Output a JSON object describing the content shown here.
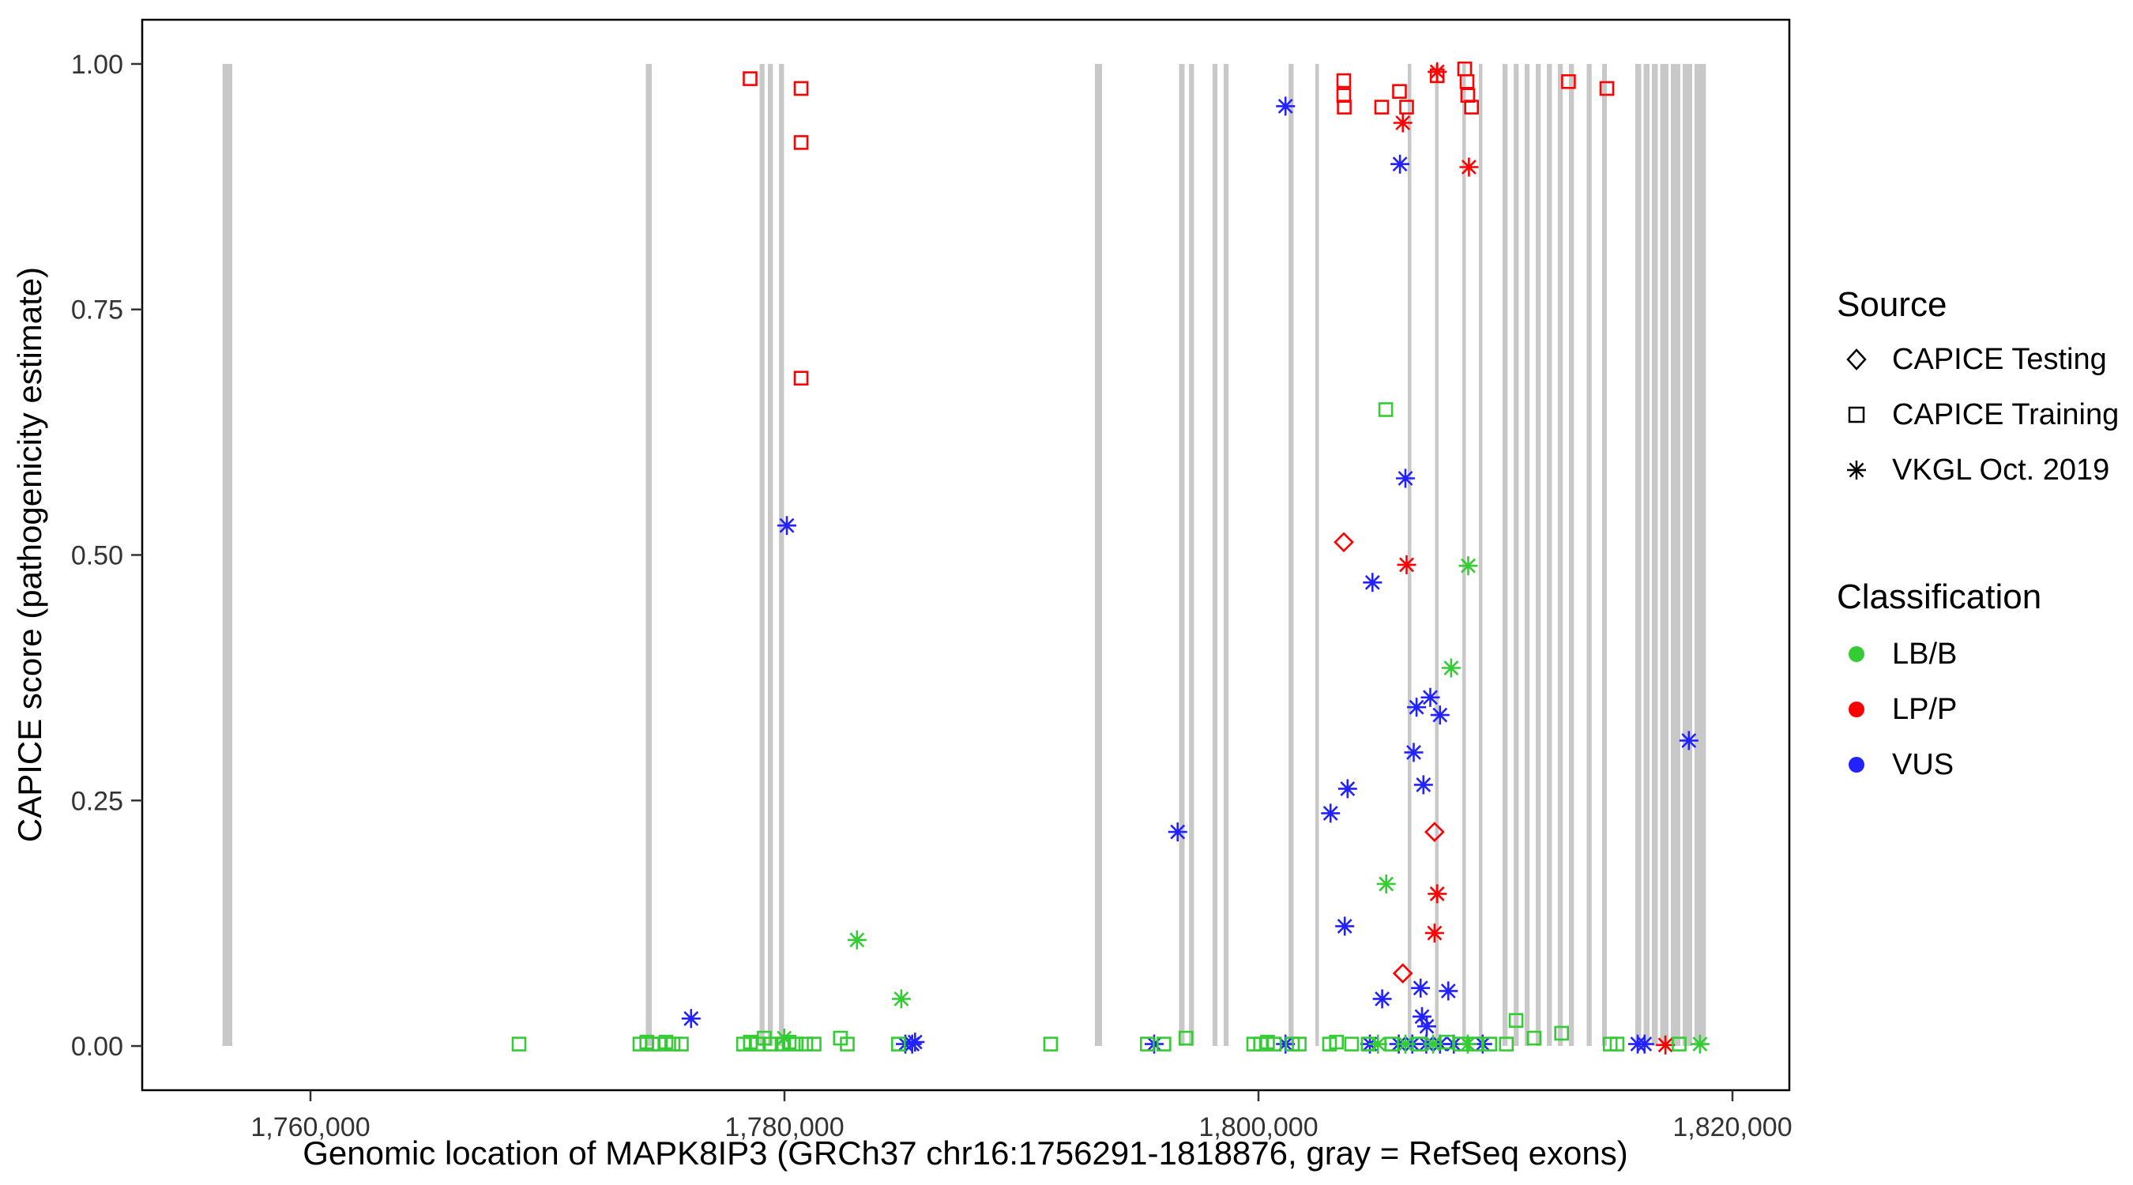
{
  "legend": {
    "source": {
      "title": "Source",
      "items": [
        {
          "label": "CAPICE Testing",
          "symbol": "diamond"
        },
        {
          "label": "CAPICE Training",
          "symbol": "square"
        },
        {
          "label": "VKGL Oct. 2019",
          "symbol": "asterisk"
        }
      ]
    },
    "classification": {
      "title": "Classification",
      "items": [
        {
          "label": "LB/B",
          "color": "#33cc33"
        },
        {
          "label": "LP/P",
          "color": "#ff0000"
        },
        {
          "label": "VUS",
          "color": "#2222ff"
        }
      ]
    }
  },
  "chart_data": {
    "type": "scatter",
    "title": "",
    "xlabel": "Genomic location of MAPK8IP3 (GRCh37 chr16:1756291-1818876, gray = RefSeq exons)",
    "ylabel": "CAPICE score (pathogenicity estimate)",
    "xlim": [
      1752900,
      1822400
    ],
    "ylim": [
      -0.045,
      1.045
    ],
    "x_ticks": [
      {
        "value": 1760000,
        "label": "1,760,000"
      },
      {
        "value": 1780000,
        "label": "1,780,000"
      },
      {
        "value": 1800000,
        "label": "1,800,000"
      },
      {
        "value": 1820000,
        "label": "1,820,000"
      }
    ],
    "y_ticks": [
      {
        "value": 0.0,
        "label": "0.00"
      },
      {
        "value": 0.25,
        "label": "0.25"
      },
      {
        "value": 0.5,
        "label": "0.50"
      },
      {
        "value": 0.75,
        "label": "0.75"
      },
      {
        "value": 1.0,
        "label": "1.00"
      }
    ],
    "exon_color": "#c8c8c8",
    "class_colors": {
      "LB/B": "#33cc33",
      "LP/P": "#ff0000",
      "VUS": "#2222ff"
    },
    "source_shapes": {
      "testing": "diamond",
      "training": "square",
      "vkgl": "asterisk"
    },
    "exons": [
      [
        1756291,
        1756700
      ],
      [
        1774150,
        1774400
      ],
      [
        1778950,
        1779160
      ],
      [
        1779300,
        1779510
      ],
      [
        1779770,
        1779980
      ],
      [
        1793100,
        1793400
      ],
      [
        1796650,
        1796880
      ],
      [
        1797070,
        1797280
      ],
      [
        1798060,
        1798270
      ],
      [
        1798530,
        1798740
      ],
      [
        1801270,
        1801480
      ],
      [
        1802400,
        1802550
      ],
      [
        1806300,
        1806450
      ],
      [
        1807450,
        1807600
      ],
      [
        1808600,
        1808750
      ],
      [
        1809300,
        1809450
      ],
      [
        1810300,
        1810510
      ],
      [
        1810770,
        1810980
      ],
      [
        1811230,
        1811440
      ],
      [
        1811700,
        1811910
      ],
      [
        1812170,
        1812380
      ],
      [
        1812630,
        1812840
      ],
      [
        1813100,
        1813310
      ],
      [
        1813850,
        1814060
      ],
      [
        1814500,
        1814700
      ],
      [
        1815900,
        1816150
      ],
      [
        1816250,
        1816500
      ],
      [
        1816600,
        1816850
      ],
      [
        1816950,
        1817300
      ],
      [
        1817400,
        1817800
      ],
      [
        1817900,
        1818300
      ],
      [
        1818400,
        1818876
      ]
    ],
    "points": [
      {
        "x": 1778550,
        "y": 0.985,
        "s": "training",
        "c": "LP/P"
      },
      {
        "x": 1780700,
        "y": 0.975,
        "s": "training",
        "c": "LP/P"
      },
      {
        "x": 1780700,
        "y": 0.92,
        "s": "training",
        "c": "LP/P"
      },
      {
        "x": 1780700,
        "y": 0.68,
        "s": "training",
        "c": "LP/P"
      },
      {
        "x": 1803600,
        "y": 0.983,
        "s": "training",
        "c": "LP/P"
      },
      {
        "x": 1803600,
        "y": 0.968,
        "s": "training",
        "c": "LP/P"
      },
      {
        "x": 1803620,
        "y": 0.956,
        "s": "training",
        "c": "LP/P"
      },
      {
        "x": 1805200,
        "y": 0.956,
        "s": "training",
        "c": "LP/P"
      },
      {
        "x": 1805950,
        "y": 0.972,
        "s": "training",
        "c": "LP/P"
      },
      {
        "x": 1806250,
        "y": 0.956,
        "s": "training",
        "c": "LP/P"
      },
      {
        "x": 1807540,
        "y": 0.988,
        "s": "training",
        "c": "LP/P"
      },
      {
        "x": 1808700,
        "y": 0.995,
        "s": "training",
        "c": "LP/P"
      },
      {
        "x": 1808800,
        "y": 0.982,
        "s": "training",
        "c": "LP/P"
      },
      {
        "x": 1808830,
        "y": 0.968,
        "s": "training",
        "c": "LP/P"
      },
      {
        "x": 1808990,
        "y": 0.956,
        "s": "training",
        "c": "LP/P"
      },
      {
        "x": 1813080,
        "y": 0.982,
        "s": "training",
        "c": "LP/P"
      },
      {
        "x": 1814700,
        "y": 0.975,
        "s": "training",
        "c": "LP/P"
      },
      {
        "x": 1806090,
        "y": 0.94,
        "s": "vkgl",
        "c": "LP/P"
      },
      {
        "x": 1807540,
        "y": 0.992,
        "s": "vkgl",
        "c": "LP/P"
      },
      {
        "x": 1808880,
        "y": 0.895,
        "s": "vkgl",
        "c": "LP/P"
      },
      {
        "x": 1806250,
        "y": 0.49,
        "s": "vkgl",
        "c": "LP/P"
      },
      {
        "x": 1807540,
        "y": 0.155,
        "s": "vkgl",
        "c": "LP/P"
      },
      {
        "x": 1807430,
        "y": 0.115,
        "s": "vkgl",
        "c": "LP/P"
      },
      {
        "x": 1817170,
        "y": 0.001,
        "s": "vkgl",
        "c": "LP/P"
      },
      {
        "x": 1803600,
        "y": 0.513,
        "s": "testing",
        "c": "LP/P"
      },
      {
        "x": 1807430,
        "y": 0.218,
        "s": "testing",
        "c": "LP/P"
      },
      {
        "x": 1806090,
        "y": 0.074,
        "s": "testing",
        "c": "LP/P"
      },
      {
        "x": 1801140,
        "y": 0.957,
        "s": "vkgl",
        "c": "VUS"
      },
      {
        "x": 1805970,
        "y": 0.898,
        "s": "vkgl",
        "c": "VUS"
      },
      {
        "x": 1806200,
        "y": 0.578,
        "s": "vkgl",
        "c": "VUS"
      },
      {
        "x": 1780100,
        "y": 0.53,
        "s": "vkgl",
        "c": "VUS"
      },
      {
        "x": 1804810,
        "y": 0.472,
        "s": "vkgl",
        "c": "VUS"
      },
      {
        "x": 1807250,
        "y": 0.355,
        "s": "vkgl",
        "c": "VUS"
      },
      {
        "x": 1806670,
        "y": 0.345,
        "s": "vkgl",
        "c": "VUS"
      },
      {
        "x": 1807660,
        "y": 0.337,
        "s": "vkgl",
        "c": "VUS"
      },
      {
        "x": 1806550,
        "y": 0.299,
        "s": "vkgl",
        "c": "VUS"
      },
      {
        "x": 1806960,
        "y": 0.266,
        "s": "vkgl",
        "c": "VUS"
      },
      {
        "x": 1803760,
        "y": 0.262,
        "s": "vkgl",
        "c": "VUS"
      },
      {
        "x": 1803040,
        "y": 0.237,
        "s": "vkgl",
        "c": "VUS"
      },
      {
        "x": 1796590,
        "y": 0.218,
        "s": "vkgl",
        "c": "VUS"
      },
      {
        "x": 1818160,
        "y": 0.311,
        "s": "vkgl",
        "c": "VUS"
      },
      {
        "x": 1803640,
        "y": 0.122,
        "s": "vkgl",
        "c": "VUS"
      },
      {
        "x": 1806840,
        "y": 0.059,
        "s": "vkgl",
        "c": "VUS"
      },
      {
        "x": 1808010,
        "y": 0.056,
        "s": "vkgl",
        "c": "VUS"
      },
      {
        "x": 1805220,
        "y": 0.048,
        "s": "vkgl",
        "c": "VUS"
      },
      {
        "x": 1776060,
        "y": 0.028,
        "s": "vkgl",
        "c": "VUS"
      },
      {
        "x": 1806900,
        "y": 0.03,
        "s": "vkgl",
        "c": "VUS"
      },
      {
        "x": 1807100,
        "y": 0.02,
        "s": "vkgl",
        "c": "VUS"
      },
      {
        "x": 1785100,
        "y": 0.002,
        "s": "vkgl",
        "c": "VUS"
      },
      {
        "x": 1785390,
        "y": 0.002,
        "s": "vkgl",
        "c": "VUS"
      },
      {
        "x": 1785510,
        "y": 0.004,
        "s": "vkgl",
        "c": "VUS"
      },
      {
        "x": 1795600,
        "y": 0.002,
        "s": "vkgl",
        "c": "VUS"
      },
      {
        "x": 1801140,
        "y": 0.002,
        "s": "vkgl",
        "c": "VUS"
      },
      {
        "x": 1804700,
        "y": 0.002,
        "s": "vkgl",
        "c": "VUS"
      },
      {
        "x": 1805920,
        "y": 0.002,
        "s": "vkgl",
        "c": "VUS"
      },
      {
        "x": 1806490,
        "y": 0.002,
        "s": "vkgl",
        "c": "VUS"
      },
      {
        "x": 1807080,
        "y": 0.002,
        "s": "vkgl",
        "c": "VUS"
      },
      {
        "x": 1807660,
        "y": 0.002,
        "s": "vkgl",
        "c": "VUS"
      },
      {
        "x": 1808240,
        "y": 0.002,
        "s": "vkgl",
        "c": "VUS"
      },
      {
        "x": 1809460,
        "y": 0.002,
        "s": "vkgl",
        "c": "VUS"
      },
      {
        "x": 1816000,
        "y": 0.002,
        "s": "vkgl",
        "c": "VUS"
      },
      {
        "x": 1816290,
        "y": 0.002,
        "s": "vkgl",
        "c": "VUS"
      },
      {
        "x": 1768800,
        "y": 0.002,
        "s": "training",
        "c": "LB/B"
      },
      {
        "x": 1773900,
        "y": 0.002,
        "s": "training",
        "c": "LB/B"
      },
      {
        "x": 1774190,
        "y": 0.004,
        "s": "training",
        "c": "LB/B"
      },
      {
        "x": 1774420,
        "y": 0.002,
        "s": "training",
        "c": "LB/B"
      },
      {
        "x": 1774710,
        "y": 0.002,
        "s": "training",
        "c": "LB/B"
      },
      {
        "x": 1775000,
        "y": 0.004,
        "s": "training",
        "c": "LB/B"
      },
      {
        "x": 1775300,
        "y": 0.002,
        "s": "training",
        "c": "LB/B"
      },
      {
        "x": 1775650,
        "y": 0.002,
        "s": "training",
        "c": "LB/B"
      },
      {
        "x": 1778270,
        "y": 0.002,
        "s": "training",
        "c": "LB/B"
      },
      {
        "x": 1778560,
        "y": 0.004,
        "s": "training",
        "c": "LB/B"
      },
      {
        "x": 1778850,
        "y": 0.002,
        "s": "training",
        "c": "LB/B"
      },
      {
        "x": 1779150,
        "y": 0.008,
        "s": "training",
        "c": "LB/B"
      },
      {
        "x": 1779440,
        "y": 0.002,
        "s": "training",
        "c": "LB/B"
      },
      {
        "x": 1779900,
        "y": 0.002,
        "s": "training",
        "c": "LB/B"
      },
      {
        "x": 1780200,
        "y": 0.004,
        "s": "training",
        "c": "LB/B"
      },
      {
        "x": 1780490,
        "y": 0.002,
        "s": "training",
        "c": "LB/B"
      },
      {
        "x": 1780900,
        "y": 0.002,
        "s": "training",
        "c": "LB/B"
      },
      {
        "x": 1781250,
        "y": 0.002,
        "s": "training",
        "c": "LB/B"
      },
      {
        "x": 1782360,
        "y": 0.008,
        "s": "training",
        "c": "LB/B"
      },
      {
        "x": 1782650,
        "y": 0.002,
        "s": "training",
        "c": "LB/B"
      },
      {
        "x": 1784810,
        "y": 0.002,
        "s": "training",
        "c": "LB/B"
      },
      {
        "x": 1791230,
        "y": 0.002,
        "s": "training",
        "c": "LB/B"
      },
      {
        "x": 1795310,
        "y": 0.002,
        "s": "training",
        "c": "LB/B"
      },
      {
        "x": 1796010,
        "y": 0.002,
        "s": "training",
        "c": "LB/B"
      },
      {
        "x": 1796940,
        "y": 0.008,
        "s": "training",
        "c": "LB/B"
      },
      {
        "x": 1799800,
        "y": 0.002,
        "s": "training",
        "c": "LB/B"
      },
      {
        "x": 1800090,
        "y": 0.002,
        "s": "training",
        "c": "LB/B"
      },
      {
        "x": 1800380,
        "y": 0.004,
        "s": "training",
        "c": "LB/B"
      },
      {
        "x": 1800670,
        "y": 0.002,
        "s": "training",
        "c": "LB/B"
      },
      {
        "x": 1801430,
        "y": 0.002,
        "s": "training",
        "c": "LB/B"
      },
      {
        "x": 1801720,
        "y": 0.002,
        "s": "training",
        "c": "LB/B"
      },
      {
        "x": 1803000,
        "y": 0.002,
        "s": "training",
        "c": "LB/B"
      },
      {
        "x": 1803290,
        "y": 0.004,
        "s": "training",
        "c": "LB/B"
      },
      {
        "x": 1803930,
        "y": 0.002,
        "s": "training",
        "c": "LB/B"
      },
      {
        "x": 1804630,
        "y": 0.002,
        "s": "training",
        "c": "LB/B"
      },
      {
        "x": 1805620,
        "y": 0.002,
        "s": "training",
        "c": "LB/B"
      },
      {
        "x": 1806780,
        "y": 0.002,
        "s": "training",
        "c": "LB/B"
      },
      {
        "x": 1807950,
        "y": 0.004,
        "s": "training",
        "c": "LB/B"
      },
      {
        "x": 1808530,
        "y": 0.002,
        "s": "training",
        "c": "LB/B"
      },
      {
        "x": 1809170,
        "y": 0.002,
        "s": "training",
        "c": "LB/B"
      },
      {
        "x": 1809760,
        "y": 0.002,
        "s": "training",
        "c": "LB/B"
      },
      {
        "x": 1810460,
        "y": 0.002,
        "s": "training",
        "c": "LB/B"
      },
      {
        "x": 1810870,
        "y": 0.026,
        "s": "training",
        "c": "LB/B"
      },
      {
        "x": 1811630,
        "y": 0.008,
        "s": "training",
        "c": "LB/B"
      },
      {
        "x": 1812790,
        "y": 0.013,
        "s": "training",
        "c": "LB/B"
      },
      {
        "x": 1814840,
        "y": 0.002,
        "s": "training",
        "c": "LB/B"
      },
      {
        "x": 1815130,
        "y": 0.002,
        "s": "training",
        "c": "LB/B"
      },
      {
        "x": 1817750,
        "y": 0.002,
        "s": "training",
        "c": "LB/B"
      },
      {
        "x": 1805370,
        "y": 0.648,
        "s": "training",
        "c": "LB/B"
      },
      {
        "x": 1783060,
        "y": 0.108,
        "s": "vkgl",
        "c": "LB/B"
      },
      {
        "x": 1784930,
        "y": 0.048,
        "s": "vkgl",
        "c": "LB/B"
      },
      {
        "x": 1805390,
        "y": 0.165,
        "s": "vkgl",
        "c": "LB/B"
      },
      {
        "x": 1808850,
        "y": 0.489,
        "s": "vkgl",
        "c": "LB/B"
      },
      {
        "x": 1808130,
        "y": 0.385,
        "s": "vkgl",
        "c": "LB/B"
      },
      {
        "x": 1779990,
        "y": 0.008,
        "s": "vkgl",
        "c": "LB/B"
      },
      {
        "x": 1805040,
        "y": 0.002,
        "s": "vkgl",
        "c": "LB/B"
      },
      {
        "x": 1806200,
        "y": 0.002,
        "s": "vkgl",
        "c": "LB/B"
      },
      {
        "x": 1807370,
        "y": 0.002,
        "s": "vkgl",
        "c": "LB/B"
      },
      {
        "x": 1808830,
        "y": 0.002,
        "s": "vkgl",
        "c": "LB/B"
      },
      {
        "x": 1818630,
        "y": 0.002,
        "s": "vkgl",
        "c": "LB/B"
      }
    ]
  }
}
